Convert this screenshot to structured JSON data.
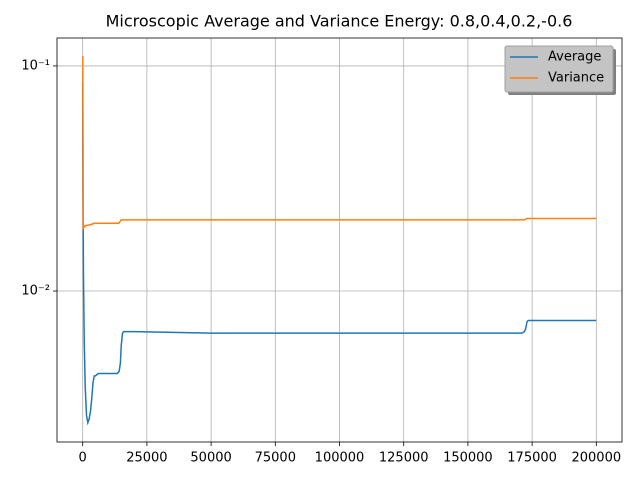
{
  "chart_data": {
    "type": "line",
    "title": "Microscopic Average and Variance Energy: 0.8,0.4,0.2,-0.6",
    "xlim": [
      -10000,
      210000
    ],
    "xticks": [
      0,
      25000,
      50000,
      75000,
      100000,
      125000,
      150000,
      175000,
      200000
    ],
    "ylim": [
      0.002134,
      0.1331
    ],
    "yscale": "log",
    "yticks": [
      {
        "value": 0.1,
        "label": "10⁻¹"
      },
      {
        "value": 0.01,
        "label": "10⁻²"
      }
    ],
    "grid": true,
    "legend": "upper right",
    "series": [
      {
        "name": "Average",
        "color": "#1f77b4",
        "x": [
          0,
          100,
          300,
          600,
          1000,
          1500,
          2000,
          2500,
          3000,
          3500,
          4000,
          4500,
          5000,
          6000,
          8000,
          10000,
          12000,
          13500,
          14200,
          14700,
          15000,
          15500,
          16000,
          20000,
          50000,
          100000,
          150000,
          171000,
          172000,
          172500,
          173000,
          173500,
          180000,
          200000
        ],
        "values": [
          0.085,
          0.03,
          0.012,
          0.006,
          0.0037,
          0.0028,
          0.0026,
          0.0027,
          0.0029,
          0.0033,
          0.0039,
          0.0042,
          0.0042,
          0.0043,
          0.0043,
          0.0043,
          0.0043,
          0.0043,
          0.0044,
          0.0048,
          0.0057,
          0.0065,
          0.0066,
          0.0066,
          0.0065,
          0.0065,
          0.0065,
          0.0065,
          0.0066,
          0.0068,
          0.0073,
          0.0074,
          0.0074,
          0.0074
        ]
      },
      {
        "name": "Variance",
        "color": "#ff7f0e",
        "x": [
          0,
          50,
          200,
          500,
          1000,
          3000,
          4500,
          5000,
          14000,
          14500,
          15000,
          15500,
          20000,
          100000,
          172000,
          173000,
          200000
        ],
        "values": [
          0.11,
          0.11,
          0.019,
          0.0192,
          0.0195,
          0.0197,
          0.02,
          0.02,
          0.02,
          0.0203,
          0.0207,
          0.0207,
          0.0207,
          0.0207,
          0.0207,
          0.021,
          0.021
        ]
      }
    ]
  }
}
